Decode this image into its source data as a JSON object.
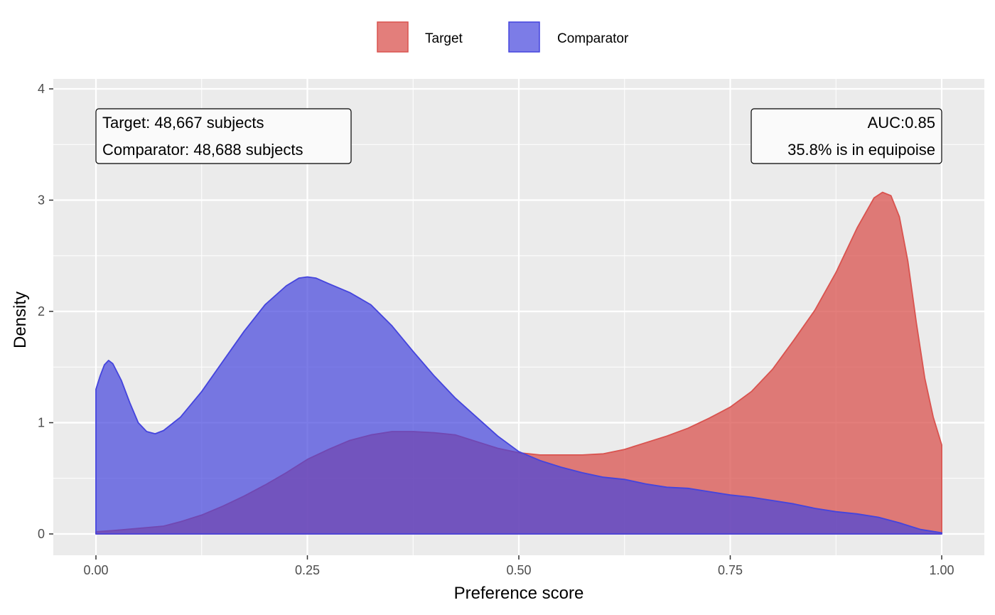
{
  "chart_data": {
    "type": "area",
    "xlabel": "Preference score",
    "ylabel": "Density",
    "xlim": [
      0,
      1
    ],
    "ylim": [
      0,
      4
    ],
    "x_ticks": [
      "0.00",
      "0.25",
      "0.50",
      "0.75",
      "1.00"
    ],
    "y_ticks": [
      "0",
      "1",
      "2",
      "3",
      "4"
    ],
    "grid": true,
    "legend_position": "top",
    "series": [
      {
        "name": "Target",
        "color": "#d9534f",
        "points": [
          [
            0.0,
            0.02
          ],
          [
            0.02,
            0.03
          ],
          [
            0.05,
            0.05
          ],
          [
            0.08,
            0.07
          ],
          [
            0.1,
            0.11
          ],
          [
            0.125,
            0.17
          ],
          [
            0.15,
            0.25
          ],
          [
            0.175,
            0.34
          ],
          [
            0.2,
            0.44
          ],
          [
            0.225,
            0.55
          ],
          [
            0.25,
            0.67
          ],
          [
            0.275,
            0.76
          ],
          [
            0.3,
            0.84
          ],
          [
            0.325,
            0.89
          ],
          [
            0.35,
            0.92
          ],
          [
            0.375,
            0.92
          ],
          [
            0.4,
            0.91
          ],
          [
            0.425,
            0.89
          ],
          [
            0.45,
            0.83
          ],
          [
            0.475,
            0.77
          ],
          [
            0.5,
            0.73
          ],
          [
            0.525,
            0.71
          ],
          [
            0.55,
            0.71
          ],
          [
            0.575,
            0.71
          ],
          [
            0.6,
            0.72
          ],
          [
            0.625,
            0.76
          ],
          [
            0.65,
            0.82
          ],
          [
            0.675,
            0.88
          ],
          [
            0.7,
            0.95
          ],
          [
            0.725,
            1.04
          ],
          [
            0.75,
            1.14
          ],
          [
            0.775,
            1.28
          ],
          [
            0.8,
            1.48
          ],
          [
            0.825,
            1.74
          ],
          [
            0.85,
            2.01
          ],
          [
            0.875,
            2.35
          ],
          [
            0.9,
            2.75
          ],
          [
            0.92,
            3.02
          ],
          [
            0.93,
            3.07
          ],
          [
            0.94,
            3.04
          ],
          [
            0.95,
            2.85
          ],
          [
            0.96,
            2.45
          ],
          [
            0.97,
            1.9
          ],
          [
            0.98,
            1.4
          ],
          [
            0.99,
            1.05
          ],
          [
            1.0,
            0.8
          ]
        ]
      },
      {
        "name": "Comparator",
        "color": "#4444dd",
        "points": [
          [
            0.0,
            1.3
          ],
          [
            0.005,
            1.42
          ],
          [
            0.01,
            1.52
          ],
          [
            0.015,
            1.56
          ],
          [
            0.02,
            1.53
          ],
          [
            0.03,
            1.38
          ],
          [
            0.04,
            1.18
          ],
          [
            0.05,
            1.0
          ],
          [
            0.06,
            0.92
          ],
          [
            0.07,
            0.9
          ],
          [
            0.08,
            0.93
          ],
          [
            0.1,
            1.05
          ],
          [
            0.125,
            1.28
          ],
          [
            0.15,
            1.55
          ],
          [
            0.175,
            1.82
          ],
          [
            0.2,
            2.06
          ],
          [
            0.225,
            2.23
          ],
          [
            0.24,
            2.3
          ],
          [
            0.25,
            2.31
          ],
          [
            0.26,
            2.3
          ],
          [
            0.275,
            2.25
          ],
          [
            0.3,
            2.17
          ],
          [
            0.325,
            2.06
          ],
          [
            0.35,
            1.87
          ],
          [
            0.375,
            1.64
          ],
          [
            0.4,
            1.42
          ],
          [
            0.425,
            1.22
          ],
          [
            0.45,
            1.05
          ],
          [
            0.475,
            0.88
          ],
          [
            0.5,
            0.74
          ],
          [
            0.525,
            0.66
          ],
          [
            0.55,
            0.6
          ],
          [
            0.575,
            0.55
          ],
          [
            0.6,
            0.51
          ],
          [
            0.625,
            0.49
          ],
          [
            0.65,
            0.45
          ],
          [
            0.675,
            0.42
          ],
          [
            0.7,
            0.41
          ],
          [
            0.725,
            0.38
          ],
          [
            0.75,
            0.35
          ],
          [
            0.775,
            0.33
          ],
          [
            0.8,
            0.3
          ],
          [
            0.825,
            0.27
          ],
          [
            0.85,
            0.23
          ],
          [
            0.875,
            0.2
          ],
          [
            0.9,
            0.18
          ],
          [
            0.925,
            0.15
          ],
          [
            0.95,
            0.1
          ],
          [
            0.975,
            0.04
          ],
          [
            1.0,
            0.01
          ]
        ]
      }
    ],
    "annotations": {
      "left": [
        "Target: 48,667 subjects",
        "Comparator: 48,688 subjects"
      ],
      "right": [
        "AUC:0.85",
        "35.8% is in equipoise"
      ]
    }
  },
  "colors": {
    "panel_background": "#ebebeb",
    "grid": "#ffffff",
    "target_fill": "#d9534f",
    "comparator_fill": "#4444dd",
    "overlap": "#6a379f"
  }
}
